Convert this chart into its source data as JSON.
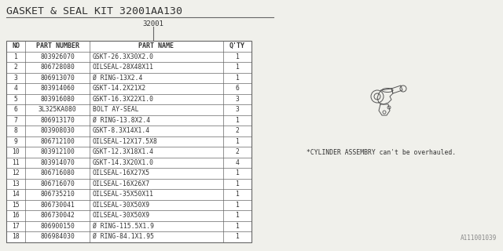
{
  "title": "GASKET & SEAL KIT 32001AA130",
  "subtitle": "32001",
  "bg_color": "#f0f0eb",
  "headers": [
    "NO",
    "PART NUMBER",
    "PART NAME",
    "Q'TY"
  ],
  "rows": [
    [
      "1",
      "803926070",
      "GSKT-26.3X30X2.0",
      "1"
    ],
    [
      "2",
      "806728080",
      "OILSEAL-28X48X11",
      "1"
    ],
    [
      "3",
      "806913070",
      "Ø RING-13X2.4",
      "1"
    ],
    [
      "4",
      "803914060",
      "GSKT-14.2X21X2",
      "6"
    ],
    [
      "5",
      "803916080",
      "GSKT-16.3X22X1.0",
      "3"
    ],
    [
      "6",
      "3L325KA080",
      "BOLT AY-SEAL",
      "3"
    ],
    [
      "7",
      "806913170",
      "Ø RING-13.8X2.4",
      "1"
    ],
    [
      "8",
      "803908030",
      "GSKT-8.3X14X1.4",
      "2"
    ],
    [
      "9",
      "806712100",
      "OILSEAL-12X17.5X8",
      "1"
    ],
    [
      "10",
      "803912100",
      "GSKT-12.3X18X1.4",
      "2"
    ],
    [
      "11",
      "803914070",
      "GSKT-14.3X20X1.0",
      "4"
    ],
    [
      "12",
      "806716080",
      "OILSEAL-16X27X5",
      "1"
    ],
    [
      "13",
      "806716070",
      "OILSEAL-16X26X7",
      "1"
    ],
    [
      "14",
      "806735210",
      "OILSEAL-35X50X11",
      "1"
    ],
    [
      "15",
      "806730041",
      "OILSEAL-30X50X9",
      "1"
    ],
    [
      "16",
      "806730042",
      "OILSEAL-30X50X9",
      "1"
    ],
    [
      "17",
      "806900150",
      "Ø RING-115.5X1.9",
      "1"
    ],
    [
      "18",
      "806984030",
      "Ø RING-84.1X1.95",
      "1"
    ]
  ],
  "note": "*CYLINDER ASSEMBRY can't be overhauled.",
  "watermark": "A111001039",
  "line_color": "#666666",
  "text_color": "#333333",
  "title_underline_color": "#555555"
}
